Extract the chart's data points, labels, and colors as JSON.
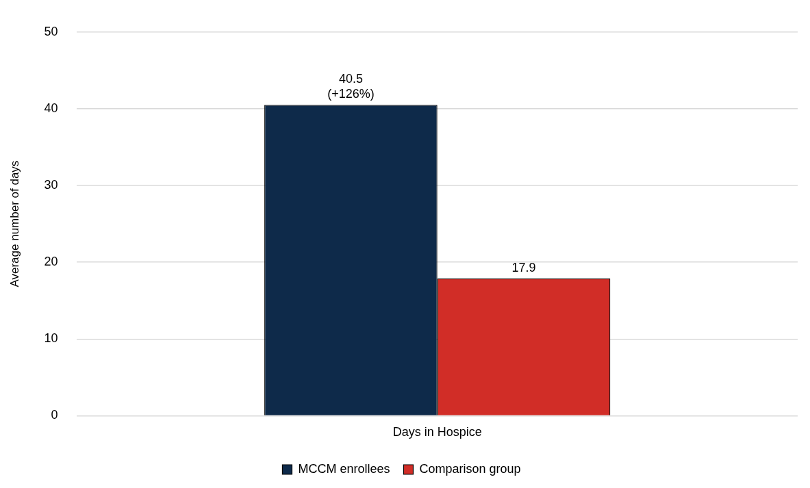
{
  "chart_data": {
    "type": "bar",
    "ylabel": "Average number of days",
    "categories": [
      "Days in Hospice"
    ],
    "series": [
      {
        "name": "MCCM enrollees",
        "color": "#0e2a4a",
        "values": [
          40.5
        ],
        "value_labels": [
          "40.5\n(+126%)"
        ]
      },
      {
        "name": "Comparison group",
        "color": "#d12d27",
        "values": [
          17.9
        ],
        "value_labels": [
          "17.9"
        ]
      }
    ],
    "ylim": [
      0,
      50
    ],
    "yticks": [
      0,
      10,
      20,
      30,
      40,
      50
    ],
    "grid": "y",
    "legend": "bottom"
  }
}
